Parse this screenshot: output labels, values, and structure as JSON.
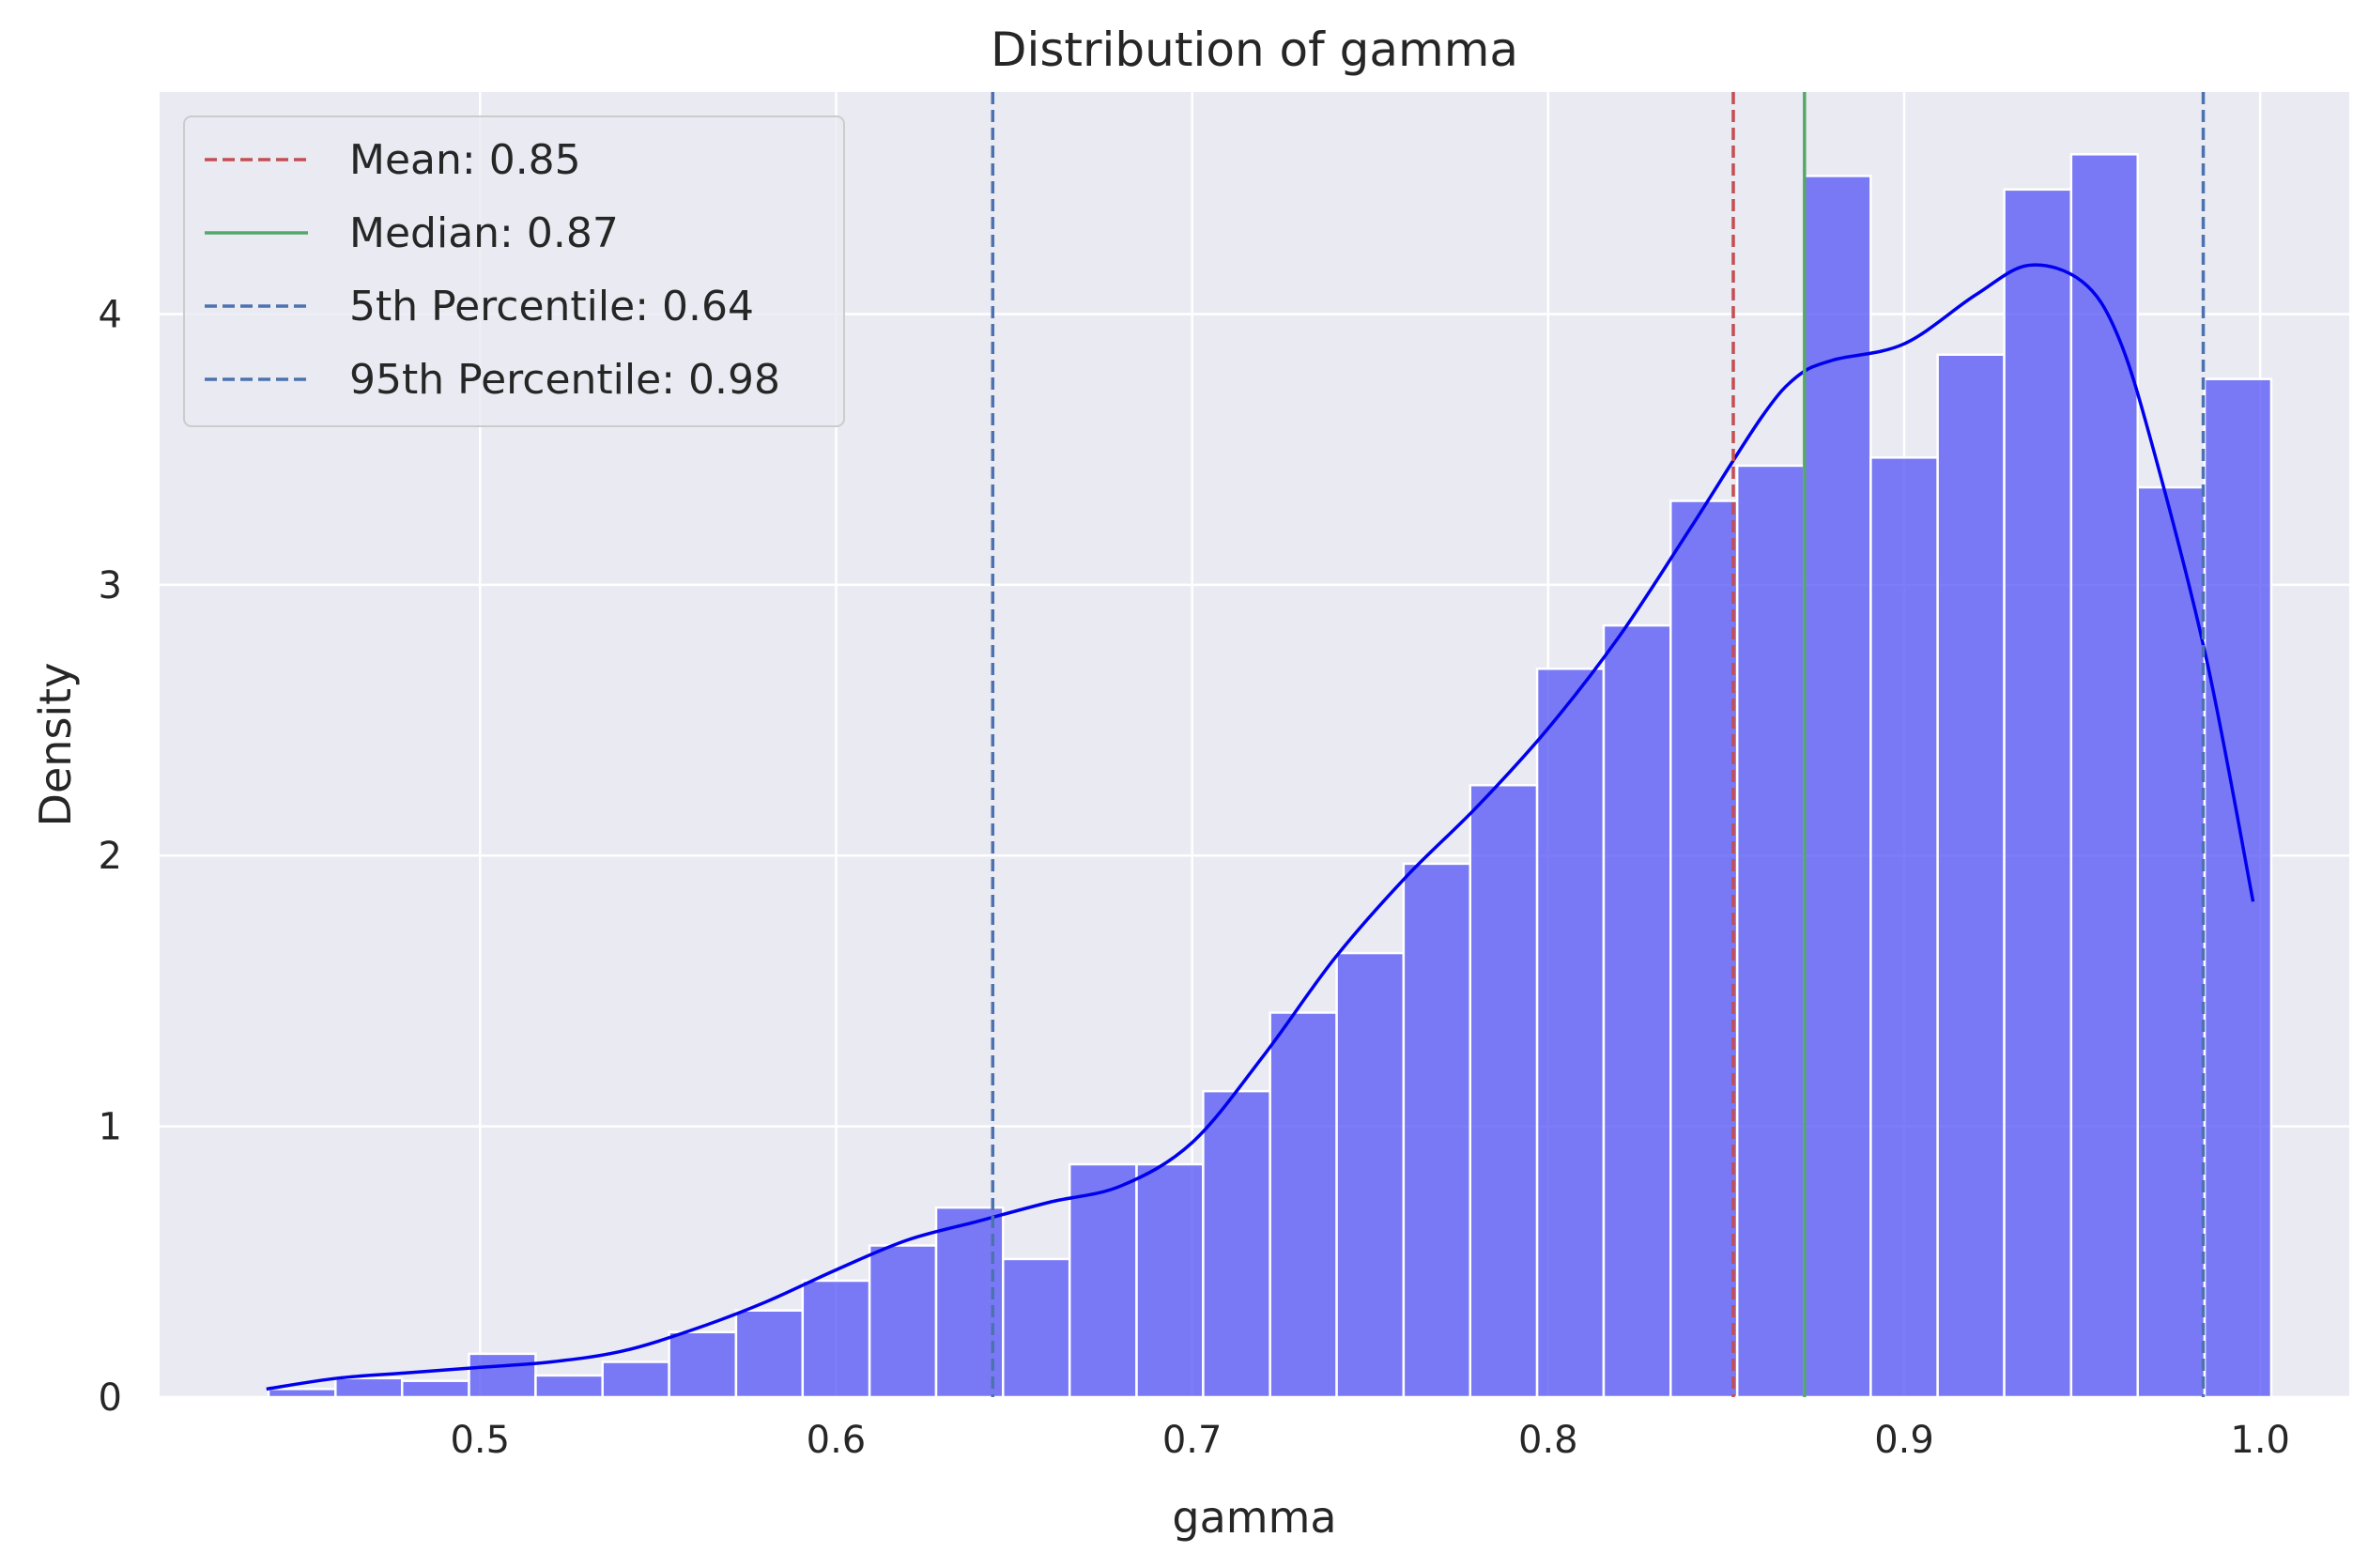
{
  "chart_data": {
    "type": "histogram",
    "title": "Distribution of gamma",
    "xlabel": "gamma",
    "ylabel": "Density",
    "xlim": [
      0.41,
      1.025
    ],
    "ylim": [
      0,
      4.82
    ],
    "grid": true,
    "legend_position": "upper-left",
    "x_ticks": [
      {
        "value": 0.5,
        "label": "0.5"
      },
      {
        "value": 0.6,
        "label": "0.6"
      },
      {
        "value": 0.7,
        "label": "0.7"
      },
      {
        "value": 0.8,
        "label": "0.8"
      },
      {
        "value": 0.9,
        "label": "0.9"
      },
      {
        "value": 1.0,
        "label": "1.0"
      }
    ],
    "y_ticks": [
      {
        "value": 0,
        "label": "0"
      },
      {
        "value": 1,
        "label": "1"
      },
      {
        "value": 2,
        "label": "2"
      },
      {
        "value": 3,
        "label": "3"
      },
      {
        "value": 4,
        "label": "4"
      }
    ],
    "bins": {
      "edges": [
        0.4406,
        0.4594,
        0.4781,
        0.4969,
        0.5156,
        0.5344,
        0.5531,
        0.5719,
        0.5906,
        0.6094,
        0.6281,
        0.6469,
        0.6656,
        0.6844,
        0.7031,
        0.7219,
        0.7406,
        0.7594,
        0.7781,
        0.7969,
        0.8156,
        0.8344,
        0.8531,
        0.8719,
        0.8906,
        0.9094,
        0.9281,
        0.9469,
        0.9656,
        0.9844,
        1.0031
      ],
      "density": [
        0.03,
        0.07,
        0.06,
        0.16,
        0.08,
        0.13,
        0.24,
        0.32,
        0.43,
        0.56,
        0.7,
        0.51,
        0.86,
        0.86,
        1.13,
        1.42,
        1.64,
        1.97,
        2.26,
        2.69,
        2.85,
        3.31,
        3.44,
        4.51,
        3.47,
        3.85,
        4.46,
        4.59,
        3.36,
        3.76
      ],
      "color": "#5c5cf5"
    },
    "kde": {
      "color": "#0000ee",
      "x": [
        0.44,
        0.46,
        0.48,
        0.5,
        0.52,
        0.54,
        0.56,
        0.58,
        0.6,
        0.62,
        0.64,
        0.66,
        0.68,
        0.7,
        0.72,
        0.74,
        0.76,
        0.78,
        0.8,
        0.82,
        0.84,
        0.86,
        0.87,
        0.88,
        0.9,
        0.92,
        0.935,
        0.95,
        0.96,
        0.97,
        0.985,
        0.998
      ],
      "y": [
        0.03,
        0.07,
        0.09,
        0.11,
        0.13,
        0.17,
        0.25,
        0.35,
        0.47,
        0.58,
        0.65,
        0.72,
        0.78,
        0.94,
        1.26,
        1.62,
        1.92,
        2.18,
        2.47,
        2.81,
        3.21,
        3.62,
        3.77,
        3.83,
        3.89,
        4.07,
        4.18,
        4.12,
        3.92,
        3.5,
        2.72,
        1.83
      ]
    },
    "reference_lines": [
      {
        "label": "Mean: 0.85",
        "value": 0.852,
        "color": "#c44e52",
        "style": "dashed"
      },
      {
        "label": "Median: 0.87",
        "value": 0.872,
        "color": "#55a868",
        "style": "solid"
      },
      {
        "label": "5th Percentile: 0.64",
        "value": 0.644,
        "color": "#4c72b0",
        "style": "dashed"
      },
      {
        "label": "95th Percentile: 0.98",
        "value": 0.984,
        "color": "#4c72b0",
        "style": "dashed"
      }
    ]
  }
}
